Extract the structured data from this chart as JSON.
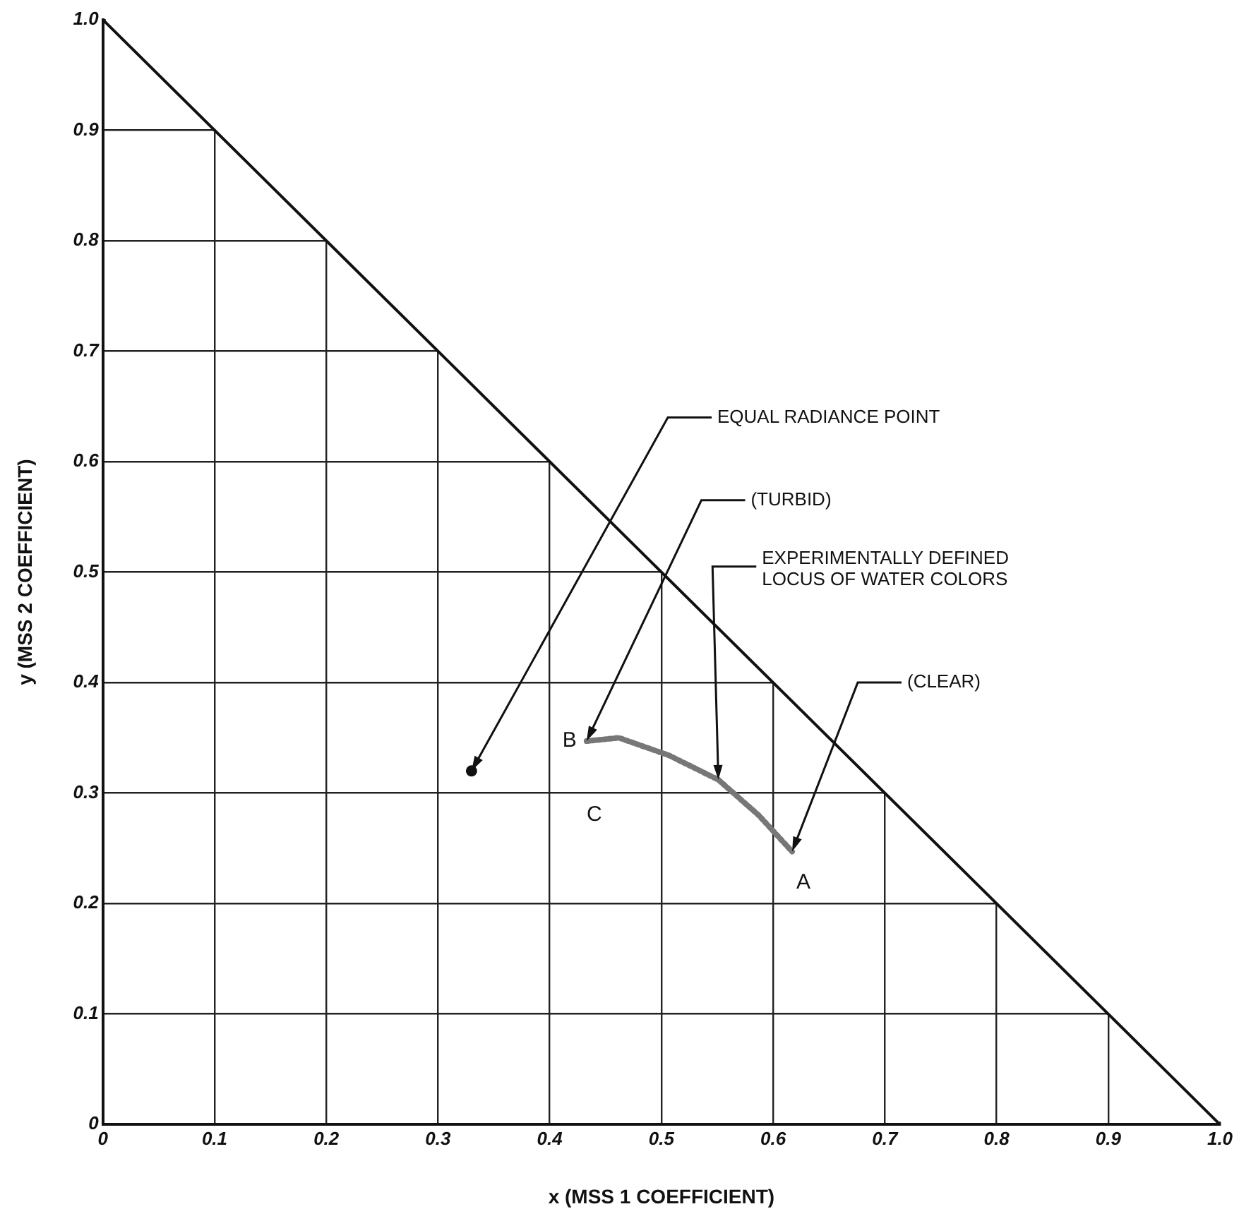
{
  "chart_data": {
    "type": "line",
    "xlabel": "x (MSS 1 COEFFICIENT)",
    "ylabel": "y (MSS 2 COEFFICIENT)",
    "xlim": [
      0,
      1
    ],
    "ylim": [
      0,
      1
    ],
    "xticks": [
      0,
      0.1,
      0.2,
      0.3,
      0.4,
      0.5,
      0.6,
      0.7,
      0.8,
      0.9,
      {
        "value": 1,
        "label": "1.0"
      }
    ],
    "yticks": [
      0,
      0.1,
      0.2,
      0.3,
      0.4,
      0.5,
      0.6,
      0.7,
      0.8,
      0.9,
      {
        "value": 1,
        "label": "1.0"
      }
    ],
    "grid": true,
    "legend": false,
    "series": [
      {
        "color": "#111111",
        "x": [
          0,
          1
        ],
        "values": [
          1,
          0
        ],
        "marker": "none"
      },
      {
        "color": "#777777",
        "x": [
          0.433,
          0.462,
          0.507,
          0.551,
          0.587,
          0.617
        ],
        "values": [
          0.347,
          0.35,
          0.334,
          0.312,
          0.28,
          0.247
        ],
        "marker": "none",
        "line_style": "dotted"
      },
      {
        "type": "scatter",
        "color": "#111111",
        "x": [
          0.33
        ],
        "values": [
          0.32
        ],
        "marker": "circle"
      }
    ],
    "annotations": [
      {
        "text": "EQUAL RADIANCE POINT",
        "x": 0.33,
        "y": 0.32
      },
      {
        "text": "(TURBID)",
        "x": 0.433,
        "y": 0.347
      },
      {
        "text": "EXPERIMENTALLY DEFINED\nLOCUS OF WATER COLORS",
        "x": 0.551,
        "y": 0.312
      },
      {
        "text": "(CLEAR)",
        "x": 0.617,
        "y": 0.247
      },
      {
        "text": "B",
        "x": 0.433,
        "y": 0.347
      },
      {
        "text": "A",
        "x": 0.617,
        "y": 0.247
      },
      "C"
    ]
  }
}
